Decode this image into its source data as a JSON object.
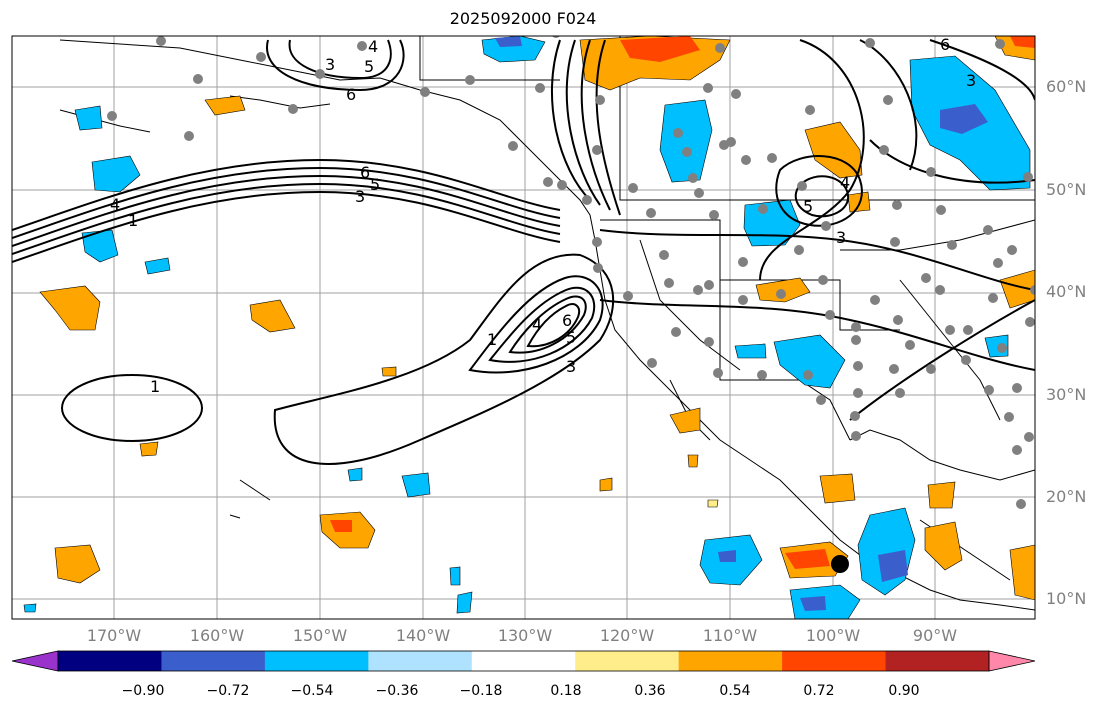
{
  "title": "2025092000 F024",
  "lat_labels": [
    "60°N",
    "50°N",
    "40°N",
    "30°N",
    "20°N",
    "10°N"
  ],
  "lon_labels": [
    "170°W",
    "160°W",
    "150°W",
    "140°W",
    "130°W",
    "120°W",
    "110°W",
    "100°W",
    "90°W"
  ],
  "colorbar": {
    "tick_labels": [
      "−0.90",
      "−0.72",
      "−0.54",
      "−0.36",
      "−0.18",
      "0.18",
      "0.36",
      "0.54",
      "0.72",
      "0.90"
    ],
    "colors": [
      "#9933cc",
      "#000080",
      "#3a5fcd",
      "#00bfff",
      "#aee2ff",
      "#ffffff",
      "#ffec8b",
      "#ffa500",
      "#ff4500",
      "#b22222",
      "#ff88aa"
    ]
  },
  "contour_labels": [
    "1",
    "3",
    "4",
    "5",
    "6"
  ],
  "colors": {
    "ocean": "#ffffff",
    "grid": "#a0a0a0",
    "contour": "#000000",
    "station": "#808080",
    "marker": "#000000"
  }
}
